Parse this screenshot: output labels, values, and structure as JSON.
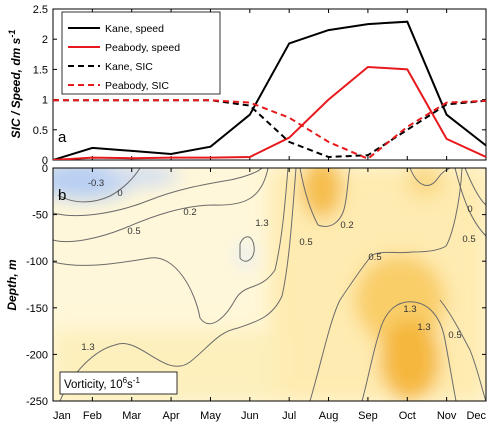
{
  "chart_data": [
    {
      "type": "line",
      "panel": "a",
      "ylabel": "SIC / Speed, dm s",
      "ylabel_sup": "-1",
      "ylim": [
        0,
        2.5
      ],
      "yticks": [
        "0",
        "0.5",
        "1",
        "1.5",
        "2",
        "2.5"
      ],
      "categories": [
        "Jan",
        "Feb",
        "Mar",
        "Apr",
        "May",
        "Jun",
        "Jul",
        "Aug",
        "Sep",
        "Oct",
        "Nov",
        "Dec"
      ],
      "legend_position": "top-left",
      "series": [
        {
          "name": "Kane, speed",
          "color": "#000000",
          "dash": "solid",
          "values": [
            0.0,
            0.2,
            0.15,
            0.1,
            0.22,
            0.75,
            1.93,
            2.15,
            2.25,
            2.29,
            0.75,
            0.24
          ]
        },
        {
          "name": "Peabody, speed",
          "color": "#e8191c",
          "dash": "solid",
          "values": [
            0.0,
            0.04,
            0.03,
            0.04,
            0.04,
            0.05,
            0.37,
            1.0,
            1.54,
            1.5,
            0.35,
            0.05
          ]
        },
        {
          "name": "Kane, SIC",
          "color": "#000000",
          "dash": "dashed",
          "values": [
            0.99,
            0.99,
            0.99,
            0.99,
            0.99,
            0.9,
            0.3,
            0.05,
            0.08,
            0.5,
            0.92,
            0.98
          ]
        },
        {
          "name": "Peabody, SIC",
          "color": "#e8191c",
          "dash": "dashed",
          "values": [
            0.99,
            0.99,
            0.99,
            0.99,
            0.99,
            0.95,
            0.7,
            0.3,
            0.02,
            0.55,
            0.95,
            0.98
          ]
        }
      ]
    },
    {
      "type": "heatmap",
      "panel": "b",
      "ylabel": "Depth, m",
      "ylim": [
        -250,
        0
      ],
      "yticks": [
        "0",
        "-50",
        "-100",
        "-150",
        "-200",
        "-250"
      ],
      "categories": [
        "Jan",
        "Feb",
        "Mar",
        "Apr",
        "May",
        "Jun",
        "Jul",
        "Aug",
        "Sep",
        "Oct",
        "Nov",
        "Dec"
      ],
      "colorbar_note": "Vorticity, 10",
      "colorbar_note_sup": "6",
      "colorbar_note_unit": "s",
      "colorbar_note_unit_sup": "-1",
      "contour_labels": [
        "-0.3",
        "0",
        "0.2",
        "0.5",
        "1.3",
        "1.3",
        "0.5",
        "0.2",
        "0",
        "0.5",
        "1.3",
        "1.3",
        "0.5",
        "0.5"
      ],
      "colors": {
        "negative": "#b9d0f2",
        "low": "#fff4cc",
        "mid": "#fbe29a",
        "high": "#f5b93c"
      }
    }
  ]
}
